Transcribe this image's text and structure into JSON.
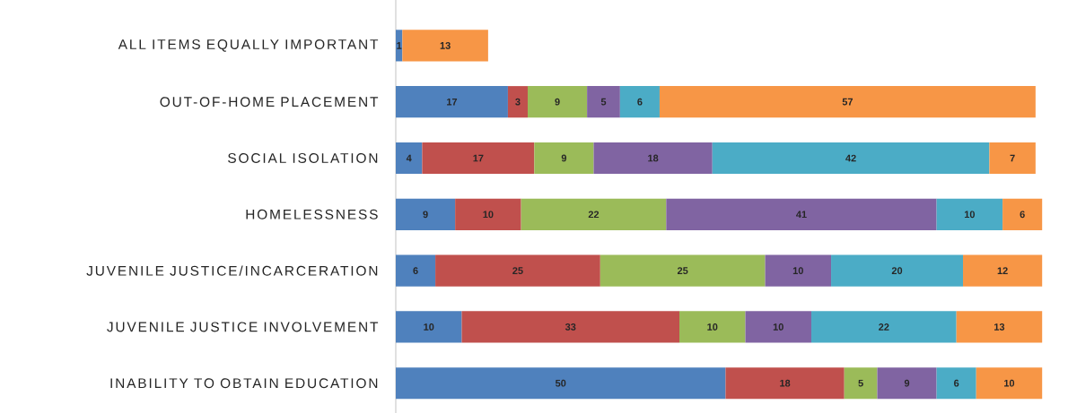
{
  "chart_data": {
    "type": "bar",
    "orientation": "horizontal",
    "stacked": true,
    "data_labels": true,
    "categories": [
      "ALL ITEMS EQUALLY IMPORTANT",
      "OUT-OF-HOME PLACEMENT",
      "SOCIAL ISOLATION",
      "HOMELESSNESS",
      "JUVENILE JUSTICE/INCARCERATION",
      "JUVENILE JUSTICE INVOLVEMENT",
      "INABILITY TO OBTAIN EDUCATION"
    ],
    "series": [
      {
        "color": "#4f81bd",
        "values": [
          1,
          17,
          4,
          9,
          6,
          10,
          50
        ]
      },
      {
        "color": "#c0504d",
        "values": [
          null,
          3,
          17,
          10,
          25,
          33,
          18
        ]
      },
      {
        "color": "#9bbb59",
        "values": [
          null,
          9,
          9,
          22,
          25,
          10,
          5
        ]
      },
      {
        "color": "#8064a2",
        "values": [
          null,
          5,
          18,
          41,
          10,
          10,
          9
        ]
      },
      {
        "color": "#4bacc6",
        "values": [
          null,
          6,
          42,
          10,
          20,
          22,
          6
        ]
      },
      {
        "color": "#f79646",
        "values": [
          13,
          57,
          7,
          6,
          12,
          13,
          10
        ]
      }
    ]
  }
}
